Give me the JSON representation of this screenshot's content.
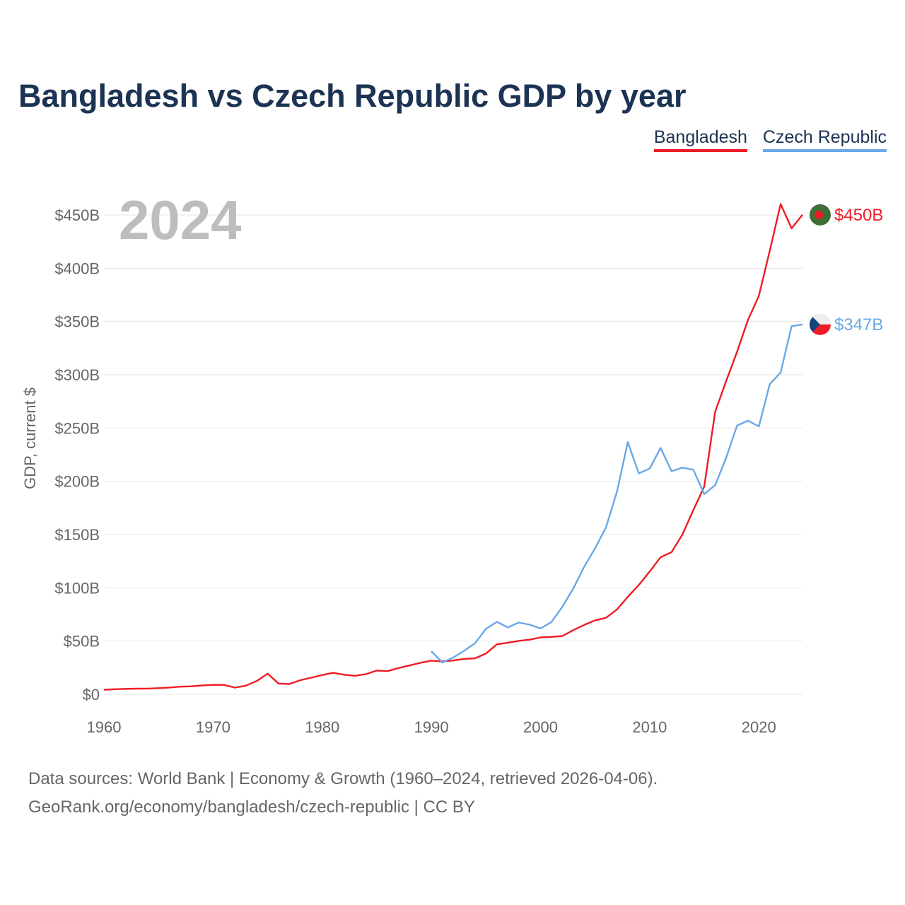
{
  "header": {
    "title": "Bangladesh vs Czech Republic GDP by year"
  },
  "legend": [
    {
      "name": "Bangladesh",
      "color": "#ee1c25"
    },
    {
      "name": "Czech Republic",
      "color": "#6aa8e6"
    }
  ],
  "footer": {
    "line1": "Data sources: World Bank | Economy & Growth (1960–2024, retrieved 2026-04-06).",
    "line2": "GeoRank.org/economy/bangladesh/czech-republic | CC BY"
  },
  "chart_data": {
    "type": "line",
    "title": "Bangladesh vs Czech Republic GDP by year",
    "xlabel": "",
    "ylabel": "GDP, current $",
    "year_label": "2024",
    "xlim": [
      1960,
      2024
    ],
    "ylim": [
      0,
      450
    ],
    "x_ticks": [
      "1960",
      "1970",
      "1980",
      "1990",
      "2000",
      "2010",
      "2020"
    ],
    "y_ticks": [
      "$0",
      "$50B",
      "$100B",
      "$150B",
      "$200B",
      "$250B",
      "$300B",
      "$350B",
      "$400B",
      "$450B"
    ],
    "series": [
      {
        "name": "Bangladesh",
        "color": "#ee1c25",
        "end_label": "$450B",
        "flag_icon": "bangladesh-flag-icon",
        "x": [
          1960,
          1961,
          1962,
          1963,
          1964,
          1965,
          1966,
          1967,
          1968,
          1969,
          1970,
          1971,
          1972,
          1973,
          1974,
          1975,
          1976,
          1977,
          1978,
          1979,
          1980,
          1981,
          1982,
          1983,
          1984,
          1985,
          1986,
          1987,
          1988,
          1989,
          1990,
          1991,
          1992,
          1993,
          1994,
          1995,
          1996,
          1997,
          1998,
          1999,
          2000,
          2001,
          2002,
          2003,
          2004,
          2005,
          2006,
          2007,
          2008,
          2009,
          2010,
          2011,
          2012,
          2013,
          2014,
          2015,
          2016,
          2017,
          2018,
          2019,
          2020,
          2021,
          2022,
          2023,
          2024
        ],
        "values": [
          4.3,
          4.8,
          5.1,
          5.3,
          5.4,
          5.8,
          6.4,
          7.2,
          7.5,
          8.3,
          8.9,
          8.8,
          6.3,
          8.1,
          12.5,
          19.4,
          10.1,
          9.7,
          13.3,
          15.6,
          18.1,
          20.2,
          18.4,
          17.4,
          18.9,
          22.3,
          21.8,
          24.7,
          27.1,
          29.6,
          31.6,
          30.9,
          31.7,
          33.2,
          33.8,
          38.3,
          46.9,
          48.4,
          50.2,
          51.3,
          53.4,
          53.9,
          54.7,
          60.2,
          65.1,
          69.4,
          71.8,
          79.6,
          91.6,
          102.5,
          115.3,
          128.6,
          133.4,
          150.0,
          172.9,
          195.1,
          265.2,
          293.8,
          321.4,
          351.2,
          374.0,
          416.3,
          460.2,
          437.4,
          450.1
        ]
      },
      {
        "name": "Czech Republic",
        "color": "#6aa8e6",
        "end_label": "$347B",
        "flag_icon": "czech-flag-icon",
        "x": [
          1990,
          1991,
          1992,
          1993,
          1994,
          1995,
          1996,
          1997,
          1998,
          1999,
          2000,
          2001,
          2002,
          2003,
          2004,
          2005,
          2006,
          2007,
          2008,
          2009,
          2010,
          2011,
          2012,
          2013,
          2014,
          2015,
          2016,
          2017,
          2018,
          2019,
          2020,
          2021,
          2022,
          2023,
          2024
        ],
        "values": [
          40.5,
          29.9,
          34.5,
          40.8,
          47.9,
          61.4,
          68.0,
          62.8,
          67.4,
          65.4,
          61.8,
          67.8,
          82.2,
          99.3,
          119.8,
          137.1,
          156.7,
          190.2,
          236.8,
          207.4,
          211.9,
          231.3,
          209.4,
          212.8,
          210.8,
          188.0,
          196.3,
          221.7,
          252.2,
          256.9,
          251.5,
          291.1,
          302.1,
          345.6,
          347.2
        ]
      }
    ]
  }
}
